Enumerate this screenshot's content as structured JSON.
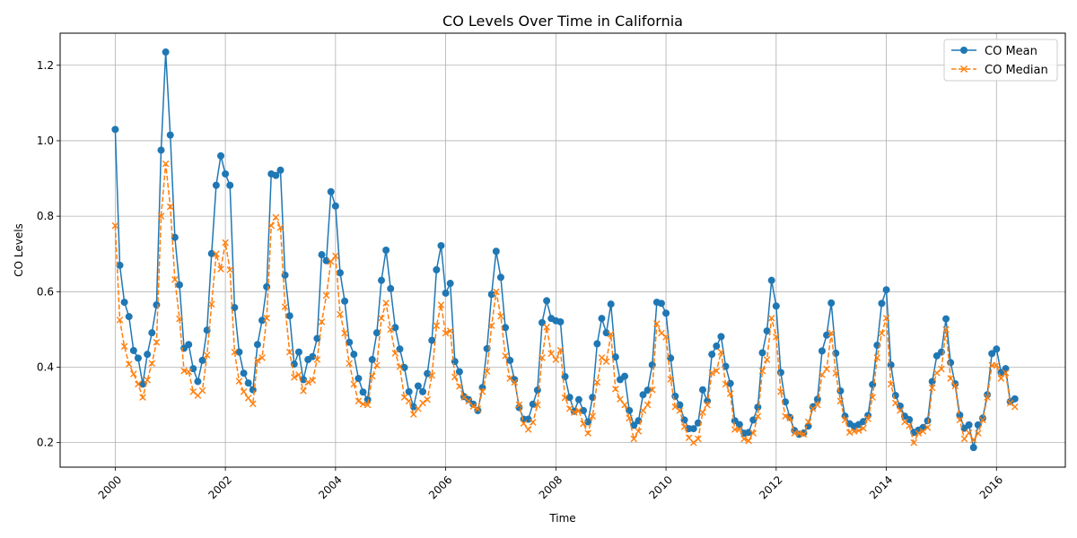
{
  "chart_data": {
    "type": "line",
    "title": "CO Levels Over Time in California",
    "xlabel": "Time",
    "ylabel": "CO Levels",
    "xlim": [
      "1999-01",
      "2017-04"
    ],
    "ylim": [
      0.135,
      1.285
    ],
    "x_ticks": [
      "2000",
      "2002",
      "2004",
      "2006",
      "2008",
      "2010",
      "2012",
      "2014",
      "2016"
    ],
    "y_ticks": [
      "0.2",
      "0.4",
      "0.6",
      "0.8",
      "1.0",
      "1.2"
    ],
    "grid": true,
    "legend": "top-right",
    "x_start": "2000-01",
    "x_step": "1 month",
    "series": [
      {
        "name": "CO Mean",
        "color": "#1f77b4",
        "style": "solid",
        "marker": "circle",
        "values": [
          1.03,
          0.67,
          0.572,
          0.534,
          0.444,
          0.424,
          0.355,
          0.434,
          0.491,
          0.565,
          0.975,
          1.235,
          1.015,
          0.744,
          0.618,
          0.45,
          0.46,
          0.396,
          0.362,
          0.418,
          0.498,
          0.701,
          0.882,
          0.96,
          0.912,
          0.882,
          0.558,
          0.44,
          0.384,
          0.358,
          0.34,
          0.46,
          0.524,
          0.613,
          0.912,
          0.908,
          0.922,
          0.644,
          0.536,
          0.408,
          0.44,
          0.367,
          0.42,
          0.428,
          0.476,
          0.698,
          0.682,
          0.865,
          0.827,
          0.65,
          0.575,
          0.466,
          0.434,
          0.37,
          0.334,
          0.314,
          0.42,
          0.491,
          0.63,
          0.71,
          0.608,
          0.505,
          0.448,
          0.399,
          0.335,
          0.295,
          0.35,
          0.335,
          0.383,
          0.471,
          0.658,
          0.722,
          0.596,
          0.622,
          0.415,
          0.388,
          0.322,
          0.314,
          0.302,
          0.285,
          0.346,
          0.449,
          0.593,
          0.707,
          0.638,
          0.505,
          0.418,
          0.367,
          0.293,
          0.262,
          0.262,
          0.302,
          0.339,
          0.518,
          0.576,
          0.529,
          0.523,
          0.52,
          0.375,
          0.32,
          0.283,
          0.314,
          0.285,
          0.255,
          0.32,
          0.462,
          0.529,
          0.491,
          0.567,
          0.427,
          0.367,
          0.376,
          0.285,
          0.246,
          0.258,
          0.327,
          0.339,
          0.406,
          0.572,
          0.569,
          0.543,
          0.424,
          0.323,
          0.3,
          0.26,
          0.237,
          0.237,
          0.252,
          0.34,
          0.31,
          0.434,
          0.456,
          0.481,
          0.402,
          0.357,
          0.258,
          0.248,
          0.225,
          0.227,
          0.26,
          0.294,
          0.438,
          0.496,
          0.63,
          0.562,
          0.386,
          0.308,
          0.267,
          0.232,
          0.222,
          0.226,
          0.244,
          0.295,
          0.315,
          0.443,
          0.485,
          0.57,
          0.437,
          0.337,
          0.27,
          0.25,
          0.243,
          0.248,
          0.256,
          0.272,
          0.354,
          0.458,
          0.569,
          0.605,
          0.406,
          0.325,
          0.297,
          0.27,
          0.261,
          0.227,
          0.233,
          0.24,
          0.258,
          0.362,
          0.43,
          0.44,
          0.528,
          0.412,
          0.356,
          0.273,
          0.238,
          0.247,
          0.187,
          0.247,
          0.265,
          0.327,
          0.436,
          0.448,
          0.386,
          0.396,
          0.309,
          0.316
        ]
      },
      {
        "name": "CO Median",
        "color": "#ff7f0e",
        "style": "dashed",
        "marker": "x",
        "values": [
          0.775,
          0.525,
          0.455,
          0.408,
          0.382,
          0.355,
          0.32,
          0.366,
          0.41,
          0.466,
          0.8,
          0.939,
          0.825,
          0.632,
          0.528,
          0.39,
          0.388,
          0.335,
          0.325,
          0.338,
          0.432,
          0.567,
          0.7,
          0.66,
          0.73,
          0.658,
          0.44,
          0.363,
          0.335,
          0.318,
          0.303,
          0.418,
          0.425,
          0.53,
          0.775,
          0.797,
          0.77,
          0.56,
          0.44,
          0.373,
          0.38,
          0.337,
          0.36,
          0.365,
          0.42,
          0.52,
          0.59,
          0.68,
          0.695,
          0.54,
          0.49,
          0.41,
          0.355,
          0.31,
          0.302,
          0.3,
          0.376,
          0.405,
          0.53,
          0.57,
          0.5,
          0.437,
          0.401,
          0.32,
          0.31,
          0.275,
          0.29,
          0.305,
          0.314,
          0.378,
          0.51,
          0.565,
          0.49,
          0.496,
          0.374,
          0.349,
          0.32,
          0.31,
          0.296,
          0.289,
          0.335,
          0.389,
          0.51,
          0.6,
          0.535,
          0.43,
          0.37,
          0.36,
          0.3,
          0.251,
          0.235,
          0.254,
          0.3,
          0.425,
          0.506,
          0.436,
          0.42,
          0.445,
          0.319,
          0.29,
          0.28,
          0.285,
          0.25,
          0.225,
          0.27,
          0.36,
          0.425,
          0.415,
          0.487,
          0.342,
          0.315,
          0.3,
          0.265,
          0.21,
          0.23,
          0.285,
          0.3,
          0.34,
          0.515,
          0.49,
          0.48,
          0.368,
          0.295,
          0.285,
          0.242,
          0.213,
          0.2,
          0.21,
          0.28,
          0.3,
          0.385,
          0.39,
          0.44,
          0.355,
          0.33,
          0.235,
          0.235,
          0.21,
          0.205,
          0.225,
          0.27,
          0.39,
          0.42,
          0.53,
          0.48,
          0.335,
          0.27,
          0.265,
          0.225,
          0.225,
          0.222,
          0.255,
          0.29,
          0.3,
          0.38,
          0.395,
          0.49,
          0.384,
          0.31,
          0.26,
          0.227,
          0.23,
          0.232,
          0.238,
          0.263,
          0.32,
          0.425,
          0.49,
          0.53,
          0.355,
          0.305,
          0.285,
          0.255,
          0.245,
          0.2,
          0.225,
          0.23,
          0.24,
          0.345,
          0.385,
          0.395,
          0.5,
          0.37,
          0.35,
          0.26,
          0.21,
          0.226,
          0.207,
          0.225,
          0.26,
          0.32,
          0.405,
          0.405,
          0.37,
          0.385,
          0.305,
          0.295
        ]
      }
    ]
  }
}
